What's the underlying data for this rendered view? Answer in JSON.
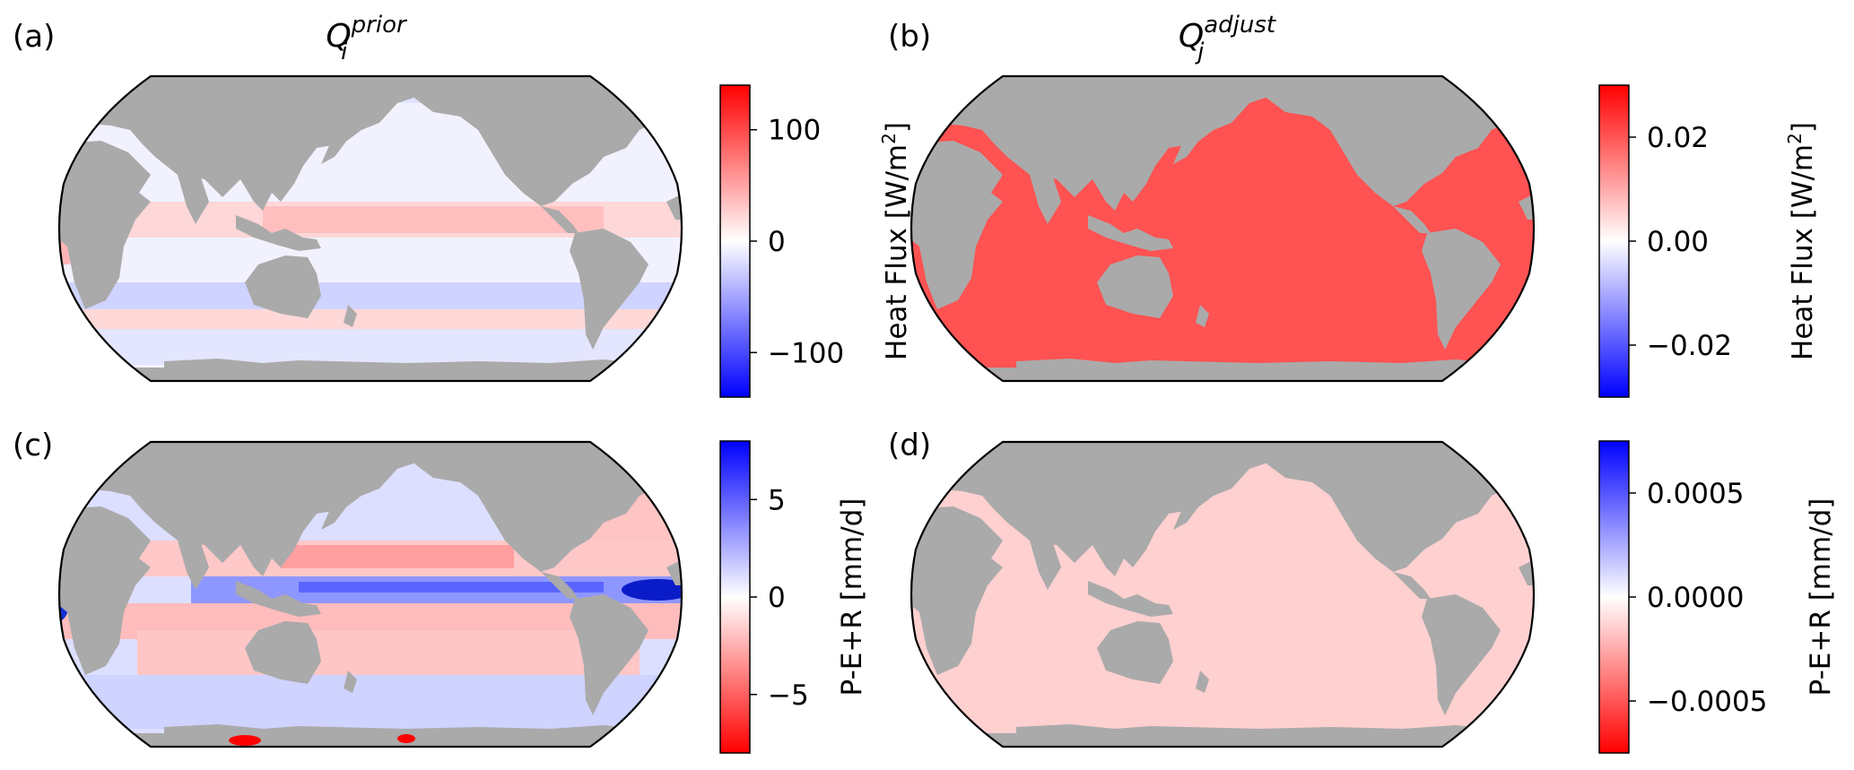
{
  "panels": [
    {
      "label": "(a)",
      "title_base": "Q",
      "title_sub": "i",
      "title_sup": "prior",
      "colorbar": {
        "label": "Heat Flux [W/m",
        "label_sup": "2",
        "label_end": "]",
        "ticks": [
          "100",
          "0",
          "−100"
        ],
        "colormap": "bwr",
        "range": [
          -140,
          140
        ]
      }
    },
    {
      "label": "(b)",
      "title_base": "Q",
      "title_sub": "j",
      "title_sup": "adjust",
      "colorbar": {
        "label": "Heat Flux [W/m",
        "label_sup": "2",
        "label_end": "]",
        "ticks": [
          "0.02",
          "0.00",
          "−0.02"
        ],
        "colormap": "bwr",
        "range": [
          -0.03,
          0.03
        ]
      }
    },
    {
      "label": "(c)",
      "title_base": "",
      "title_sub": "",
      "title_sup": "",
      "colorbar": {
        "label": "P-E+R [mm/d]",
        "label_sup": "",
        "label_end": "",
        "ticks": [
          "5",
          "0",
          "−5"
        ],
        "colormap": "bwr_r",
        "range": [
          -8,
          8
        ]
      }
    },
    {
      "label": "(d)",
      "title_base": "",
      "title_sub": "",
      "title_sup": "",
      "colorbar": {
        "label": "P-E+R [mm/d]",
        "label_sup": "",
        "label_end": "",
        "ticks": [
          "0.0005",
          "0.0000",
          "−0.0005"
        ],
        "colormap": "bwr_r",
        "range": [
          -0.00075,
          0.00075
        ]
      }
    }
  ],
  "colors": {
    "land": "#aaaaaa",
    "ocean_b": "#ff5252",
    "ocean_d": "#ffd0d0",
    "red": "#ff0000",
    "blue": "#0000ff"
  }
}
